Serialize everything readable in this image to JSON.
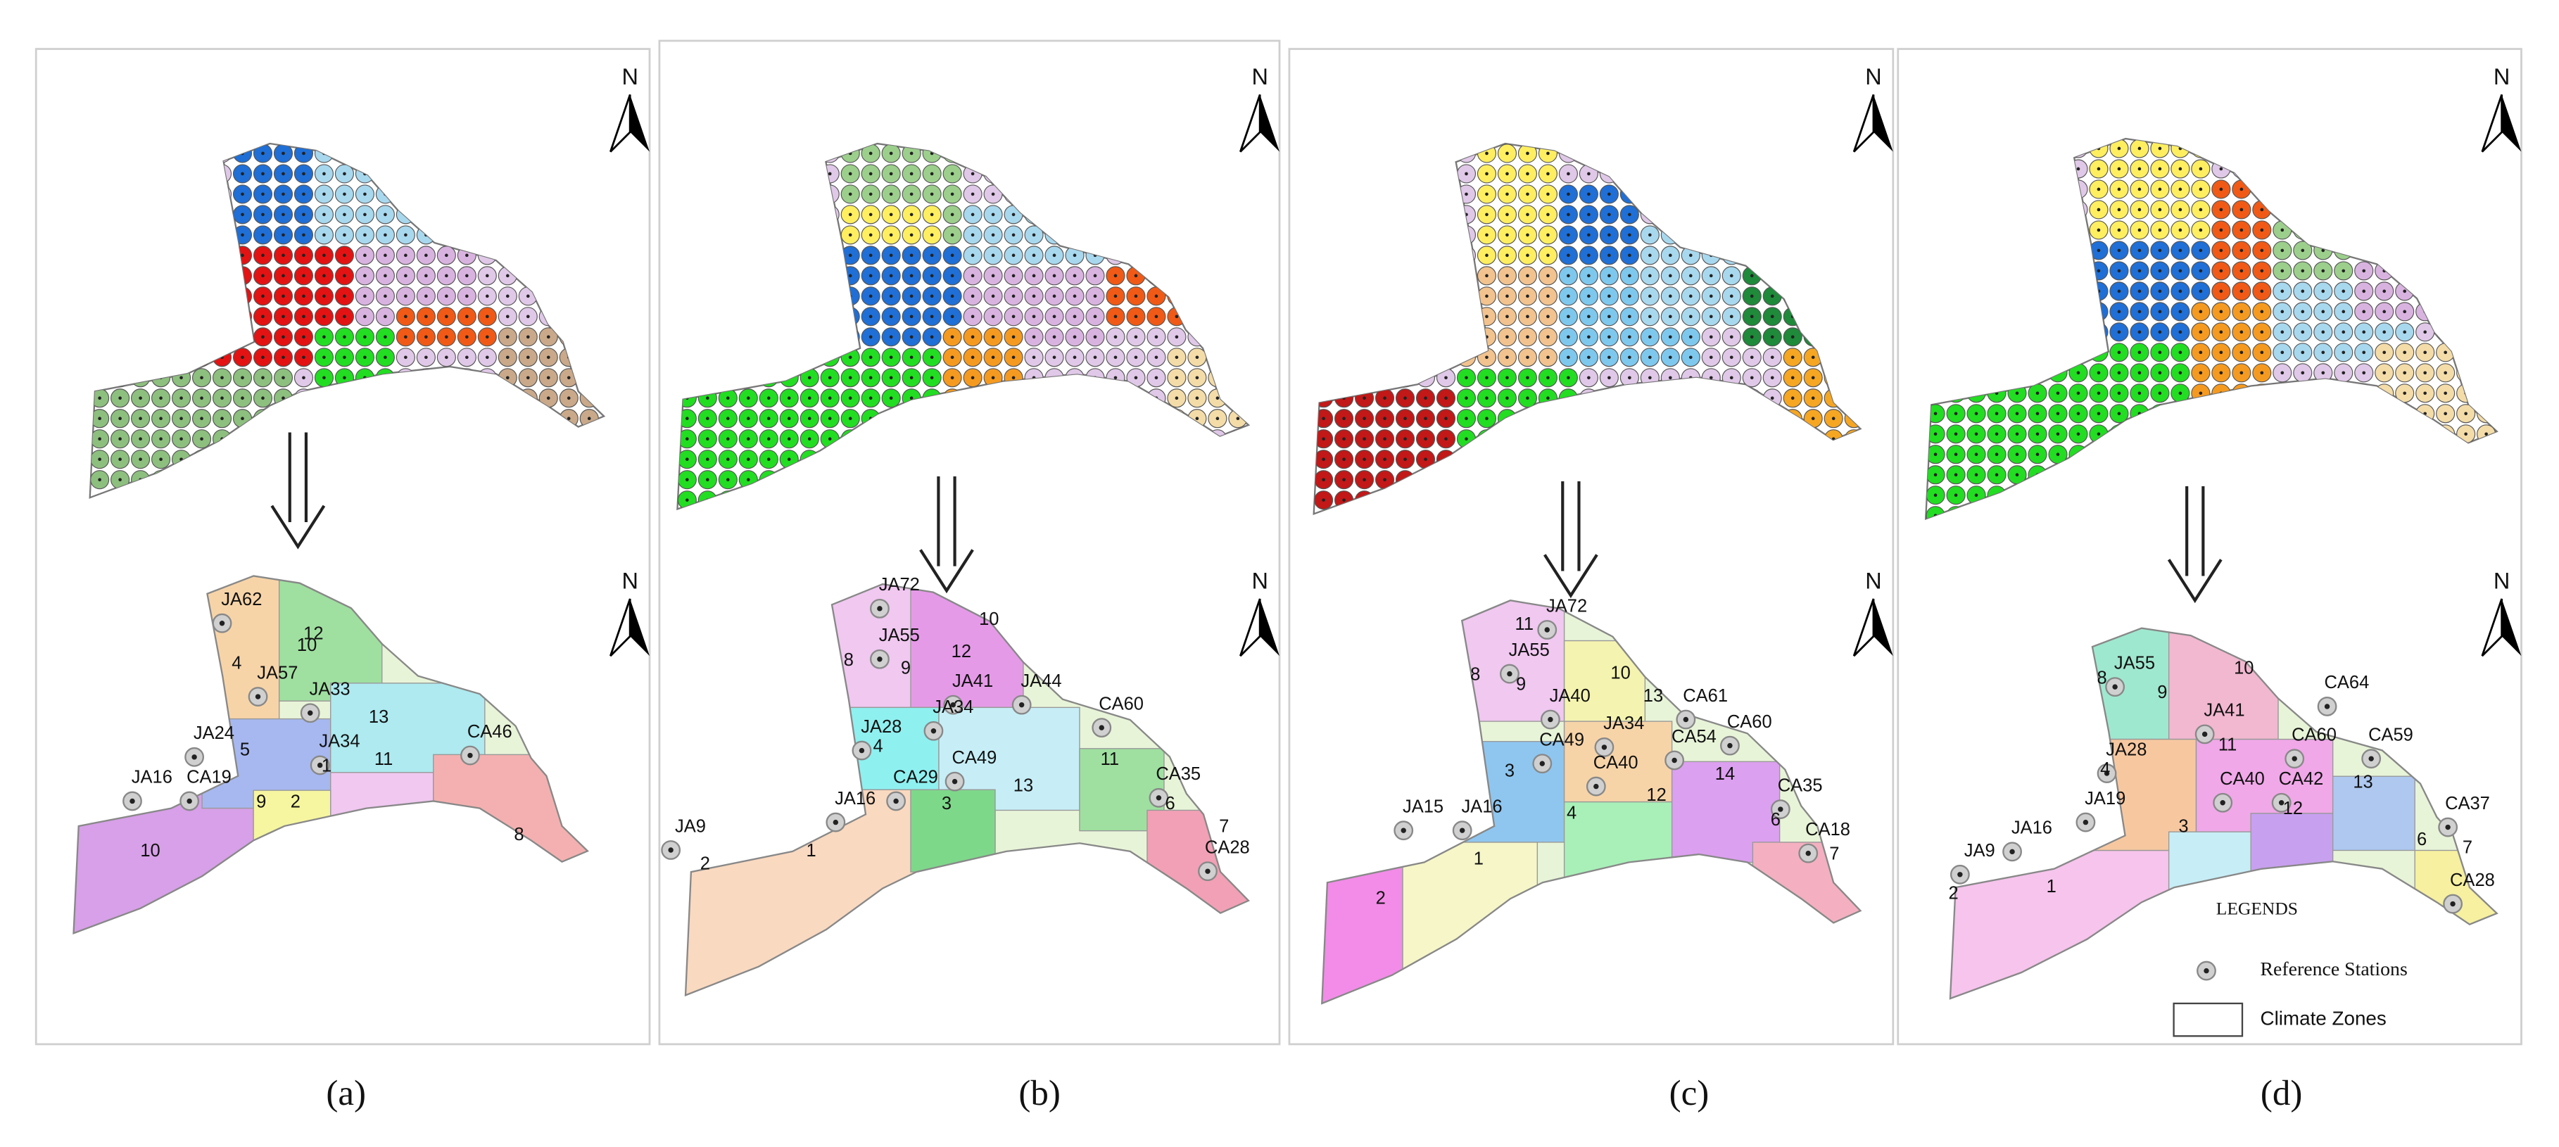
{
  "panels": [
    {
      "caption": "(a)",
      "north": [
        "N",
        "N"
      ],
      "labels": [
        "JA62",
        "12",
        "4",
        "10",
        "JA57",
        "JA33",
        "JA24",
        "5",
        "13",
        "CA46",
        "JA34",
        "1",
        "11",
        "JA16",
        "CA19",
        "9",
        "2",
        "8",
        "10"
      ]
    },
    {
      "caption": "(b)",
      "north": [
        "N",
        "N"
      ],
      "labels": [
        "JA72",
        "JA55",
        "10",
        "8",
        "12",
        "9",
        "JA41",
        "JA44",
        "JA28",
        "JA34",
        "CA60",
        "CA49",
        "4",
        "11",
        "CA29",
        "CA35",
        "JA16",
        "13",
        "3",
        "6",
        "JA9",
        "1",
        "7",
        "2",
        "CA28"
      ]
    },
    {
      "caption": "(c)",
      "north": [
        "N",
        "N"
      ],
      "labels": [
        "JA72",
        "11",
        "JA55",
        "8",
        "9",
        "10",
        "JA40",
        "13",
        "CA61",
        "CA60",
        "CA49",
        "JA34",
        "CA54",
        "3",
        "CA40",
        "14",
        "CA35",
        "4",
        "12",
        "JA15",
        "JA16",
        "6",
        "CA18",
        "1",
        "7",
        "2"
      ]
    },
    {
      "caption": "(d)",
      "north": [
        "N",
        "N"
      ],
      "labels": [
        "JA55",
        "8",
        "9",
        "10",
        "CA64",
        "JA41",
        "CA60",
        "CA59",
        "JA28",
        "11",
        "4",
        "13",
        "JA19",
        "CA40",
        "CA42",
        "12",
        "3",
        "CA37",
        "JA9",
        "JA16",
        "6",
        "7",
        "1",
        "CA28",
        "2"
      ]
    }
  ],
  "legend": {
    "title": "LEGENDS",
    "items": [
      "Reference Stations",
      "Climate Zones"
    ]
  }
}
